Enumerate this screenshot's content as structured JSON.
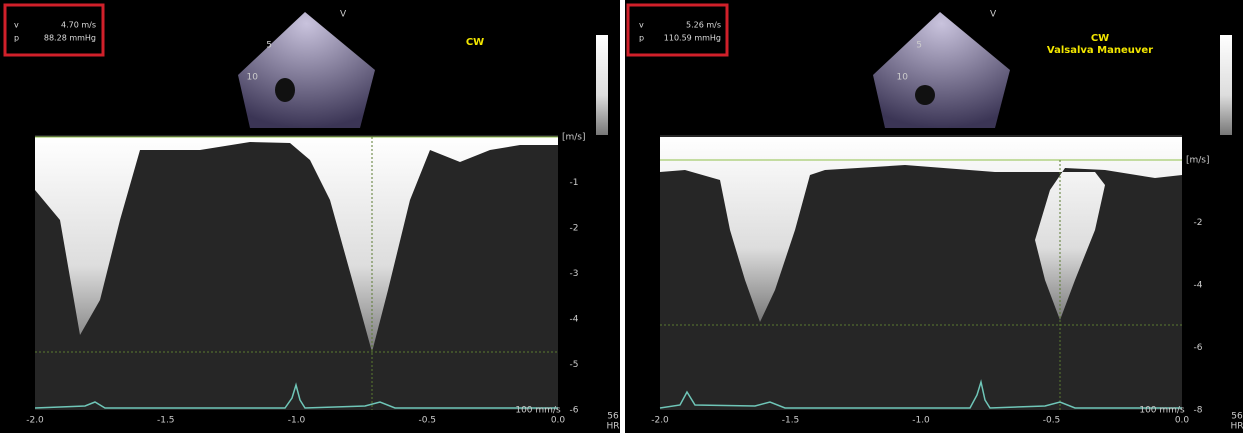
{
  "panels": [
    {
      "measure": {
        "v_label": "v",
        "v": "4.70 m/s",
        "p_label": "p",
        "p": "88.28 mmHg"
      },
      "sector": {
        "label": "V",
        "depth_ticks": [
          "5",
          "10"
        ]
      },
      "mode": [
        "CW"
      ],
      "velocity_unit": "[m/s]",
      "y_ticks": [
        "-1",
        "-2",
        "-3",
        "-4",
        "-5",
        "-6"
      ],
      "x_ticks": [
        "-2.0",
        "-1.5",
        "-1.0",
        "-0.5",
        "0.0"
      ],
      "sweep": "100 mm/s",
      "heart_rate": {
        "value": "56",
        "label": "HR"
      }
    },
    {
      "measure": {
        "v_label": "v",
        "v": "5.26 m/s",
        "p_label": "p",
        "p": "110.59 mmHg"
      },
      "sector": {
        "label": "V",
        "depth_ticks": [
          "5",
          "10"
        ]
      },
      "mode": [
        "CW",
        "Valsalva Maneuver"
      ],
      "velocity_unit": "[m/s]",
      "y_ticks": [
        "-2",
        "-4",
        "-6",
        "-8"
      ],
      "x_ticks": [
        "-2.0",
        "-1.5",
        "-1.0",
        "-0.5",
        "0.0"
      ],
      "sweep": "100 mm/s",
      "heart_rate": {
        "value": "56",
        "label": "HR"
      }
    }
  ]
}
